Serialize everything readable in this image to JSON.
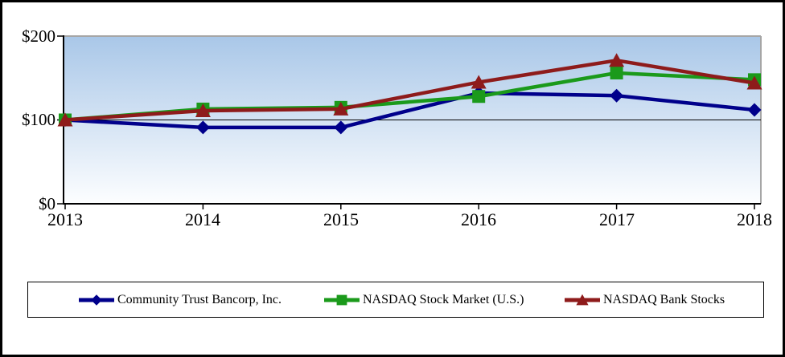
{
  "chart_data": {
    "type": "line",
    "title": "",
    "xlabel": "",
    "ylabel": "",
    "x_categories": [
      "2013",
      "2014",
      "2015",
      "2016",
      "2017",
      "2018"
    ],
    "ylim": [
      0,
      200
    ],
    "y_ticks": [
      {
        "value": 0,
        "label": "$0"
      },
      {
        "value": 100,
        "label": "$100"
      },
      {
        "value": 200,
        "label": "$200"
      }
    ],
    "gridlines": [
      100
    ],
    "grid": "horizontal-100-only",
    "legend_position": "bottom",
    "plot_background": {
      "top": "#A9C7E8",
      "bottom": "#FDFEFF"
    },
    "axis_color": "#000000",
    "plot_border_color": "#A6A6A6",
    "series": [
      {
        "name": "Community Trust Bancorp, Inc.",
        "color": "#00008B",
        "marker": "diamond",
        "values": [
          100,
          91,
          91,
          132,
          129,
          112
        ]
      },
      {
        "name": "NASDAQ Stock Market (U.S.)",
        "color": "#1B9A1B",
        "marker": "square",
        "values": [
          100,
          113,
          115,
          128,
          156,
          148
        ]
      },
      {
        "name": "NASDAQ Bank Stocks",
        "color": "#8E1B1B",
        "marker": "triangle-up",
        "values": [
          100,
          111,
          113,
          145,
          171,
          144
        ]
      }
    ]
  }
}
